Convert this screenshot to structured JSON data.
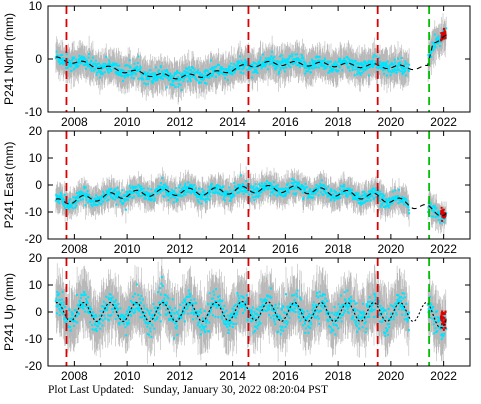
{
  "chart_data": [
    {
      "type": "scatter",
      "ylabel": "P241 North (mm)",
      "xlim": [
        2007.0,
        2023.0
      ],
      "ylim": [
        -10,
        10
      ],
      "yticks": [
        -10,
        0,
        10
      ],
      "xticks": [
        2008,
        2010,
        2012,
        2014,
        2016,
        2018,
        2020,
        2022
      ],
      "xtick_labels": [
        "2008",
        "2010",
        "2012",
        "2014",
        "2016",
        "2018",
        "2020",
        "2022"
      ],
      "ytick_labels": [
        "-10",
        "0",
        "10"
      ],
      "model_points": [
        [
          2007.3,
          0.0
        ],
        [
          2008.0,
          -0.5
        ],
        [
          2009.0,
          -1.5
        ],
        [
          2010.0,
          -2.3
        ],
        [
          2011.0,
          -3.0
        ],
        [
          2012.0,
          -3.4
        ],
        [
          2013.0,
          -3.0
        ],
        [
          2014.0,
          -2.0
        ],
        [
          2014.6,
          -1.2
        ],
        [
          2015.5,
          -0.8
        ],
        [
          2016.5,
          -0.9
        ],
        [
          2017.5,
          -1.0
        ],
        [
          2018.5,
          -1.2
        ],
        [
          2019.5,
          -1.3
        ],
        [
          2020.5,
          -1.6
        ],
        [
          2021.4,
          -1.6
        ],
        [
          2021.6,
          3.0
        ],
        [
          2022.0,
          4.5
        ]
      ],
      "seasonal_amplitude": 0.4,
      "data_spread": 1.3,
      "error_bar": 2.5,
      "breaks_red": [
        2007.7,
        2014.6,
        2019.5
      ],
      "breaks_green": [
        2021.45
      ],
      "colors": {
        "data": "#00e5ff",
        "error": "#b8b8b8",
        "model": "#000000",
        "red_line": "#dd0000",
        "green_line": "#00c000",
        "recent": "#dd0000"
      }
    },
    {
      "type": "scatter",
      "ylabel": "P241 East (mm)",
      "xlim": [
        2007.0,
        2023.0
      ],
      "ylim": [
        -20,
        20
      ],
      "yticks": [
        -20,
        -10,
        0,
        10,
        20
      ],
      "xticks": [
        2008,
        2010,
        2012,
        2014,
        2016,
        2018,
        2020,
        2022
      ],
      "xtick_labels": [
        "2008",
        "2010",
        "2012",
        "2014",
        "2016",
        "2018",
        "2020",
        "2022"
      ],
      "ytick_labels": [
        "-20",
        "-10",
        "0",
        "10",
        "20"
      ],
      "model_points": [
        [
          2007.3,
          -6.5
        ],
        [
          2008.0,
          -5.5
        ],
        [
          2009.0,
          -4.5
        ],
        [
          2010.0,
          -3.5
        ],
        [
          2011.0,
          -2.8
        ],
        [
          2012.0,
          -2.5
        ],
        [
          2013.0,
          -2.5
        ],
        [
          2014.0,
          -2.0
        ],
        [
          2015.0,
          -1.5
        ],
        [
          2016.0,
          -1.5
        ],
        [
          2017.0,
          -2.0
        ],
        [
          2018.0,
          -3.0
        ],
        [
          2019.0,
          -4.0
        ],
        [
          2019.5,
          -4.5
        ],
        [
          2020.5,
          -6.5
        ],
        [
          2021.5,
          -9.0
        ],
        [
          2022.0,
          -10.5
        ]
      ],
      "seasonal_amplitude": 1.3,
      "data_spread": 2.2,
      "error_bar": 4.0,
      "breaks_red": [
        2007.7,
        2014.6,
        2019.5
      ],
      "breaks_green": [
        2021.45
      ],
      "colors": {
        "data": "#00e5ff",
        "error": "#b8b8b8",
        "model": "#000000",
        "red_line": "#dd0000",
        "green_line": "#00c000",
        "recent": "#dd0000"
      }
    },
    {
      "type": "scatter",
      "ylabel": "P241 Up (mm)",
      "xlim": [
        2007.0,
        2023.0
      ],
      "ylim": [
        -20,
        20
      ],
      "yticks": [
        -20,
        -10,
        0,
        10,
        20
      ],
      "xticks": [
        2008,
        2010,
        2012,
        2014,
        2016,
        2018,
        2020,
        2022
      ],
      "xtick_labels": [
        "2008",
        "2010",
        "2012",
        "2014",
        "2016",
        "2018",
        "2020",
        "2022"
      ],
      "ytick_labels": [
        "-20",
        "-10",
        "0",
        "10",
        "20"
      ],
      "model_points": [
        [
          2007.3,
          0.0
        ],
        [
          2010.0,
          0.0
        ],
        [
          2013.0,
          0.0
        ],
        [
          2014.6,
          0.5
        ],
        [
          2016.0,
          0.0
        ],
        [
          2019.0,
          0.0
        ],
        [
          2021.4,
          0.0
        ],
        [
          2022.0,
          -3.0
        ]
      ],
      "seasonal_amplitude": 3.5,
      "data_spread": 4.5,
      "error_bar": 8.0,
      "breaks_red": [
        2007.7,
        2014.6,
        2019.5
      ],
      "breaks_green": [
        2021.45
      ],
      "colors": {
        "data": "#00e5ff",
        "error": "#b8b8b8",
        "model": "#000000",
        "red_line": "#dd0000",
        "green_line": "#00c000",
        "recent": "#dd0000"
      }
    }
  ],
  "footer": {
    "label": "Plot Last Updated:",
    "timestamp": "Sunday, January 30, 2022 08:20:04 PST"
  }
}
